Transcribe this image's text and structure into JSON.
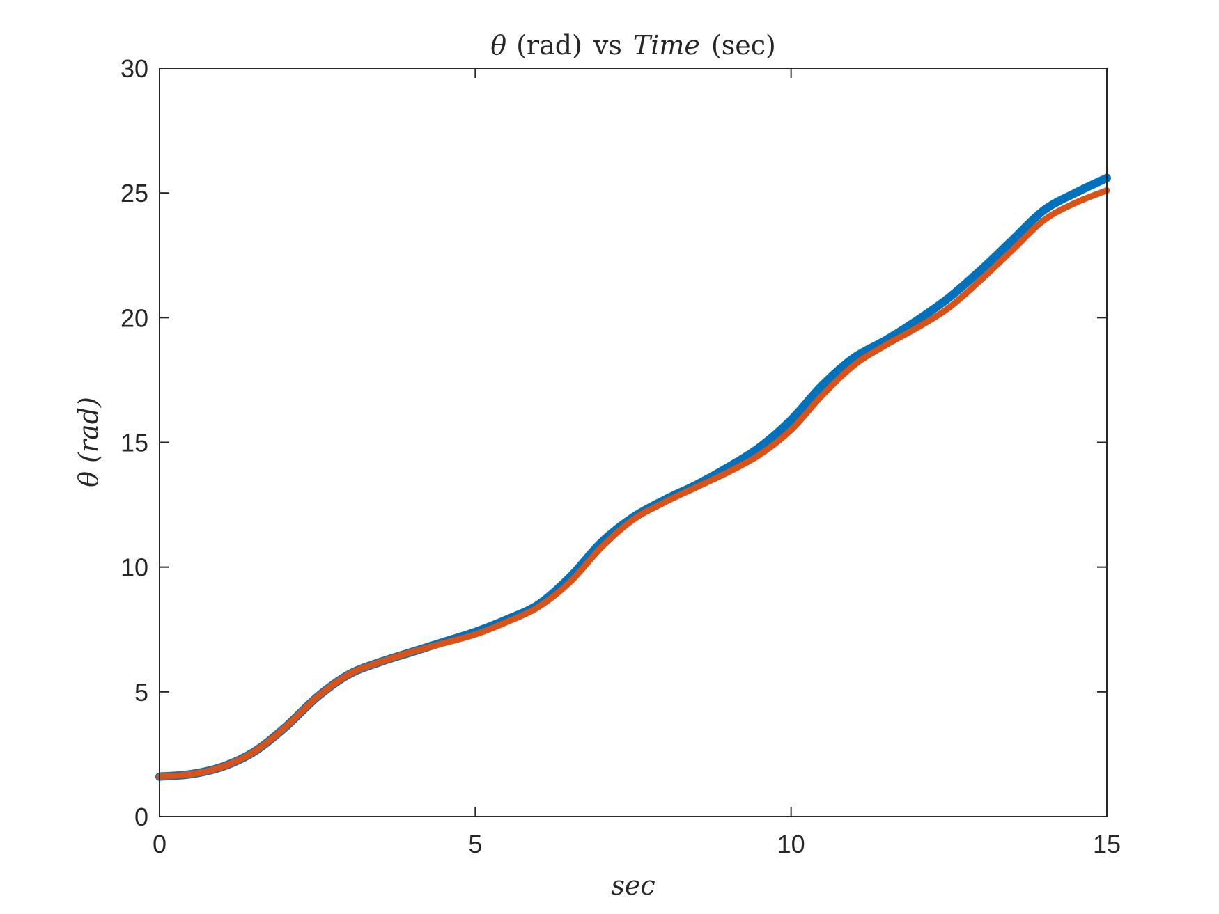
{
  "chart_data": {
    "type": "line",
    "title": {
      "theta": "θ",
      "rad": "(rad)",
      "vs": "vs",
      "time": "Time",
      "sec": "(sec)"
    },
    "xlabel": "sec",
    "ylabel": "θ (rad)",
    "xlim": [
      0,
      15
    ],
    "ylim": [
      0,
      30
    ],
    "xticks": [
      "0",
      "5",
      "10",
      "15"
    ],
    "yticks": [
      "0",
      "5",
      "10",
      "15",
      "20",
      "25",
      "30"
    ],
    "grid": false,
    "legend": "none",
    "series": [
      {
        "color": "#0072BD",
        "x": [
          0,
          0.5,
          1,
          1.5,
          2,
          2.5,
          3,
          3.5,
          4,
          4.5,
          5,
          5.5,
          6,
          6.5,
          7,
          7.5,
          8,
          8.5,
          9,
          9.5,
          10,
          10.5,
          11,
          11.5,
          12,
          12.5,
          13,
          13.5,
          14,
          14.5,
          15
        ],
        "y": [
          1.6,
          1.7,
          2.0,
          2.6,
          3.6,
          4.8,
          5.7,
          6.2,
          6.6,
          7.0,
          7.4,
          7.9,
          8.5,
          9.6,
          11.0,
          12.0,
          12.7,
          13.3,
          14.0,
          14.8,
          15.9,
          17.3,
          18.4,
          19.1,
          19.9,
          20.8,
          21.9,
          23.1,
          24.3,
          25.0,
          25.6
        ]
      },
      {
        "color": "#D95319",
        "x": [
          0,
          0.5,
          1,
          1.5,
          2,
          2.5,
          3,
          3.5,
          4,
          4.5,
          5,
          5.5,
          6,
          6.5,
          7,
          7.5,
          8,
          8.5,
          9,
          9.5,
          10,
          10.5,
          11,
          11.5,
          12,
          12.5,
          13,
          13.5,
          14,
          14.5,
          15
        ],
        "y": [
          1.6,
          1.7,
          2.0,
          2.6,
          3.6,
          4.8,
          5.7,
          6.2,
          6.6,
          6.95,
          7.3,
          7.8,
          8.4,
          9.4,
          10.8,
          11.9,
          12.6,
          13.2,
          13.8,
          14.5,
          15.5,
          16.9,
          18.1,
          18.9,
          19.6,
          20.4,
          21.5,
          22.7,
          23.9,
          24.6,
          25.1
        ]
      }
    ]
  }
}
